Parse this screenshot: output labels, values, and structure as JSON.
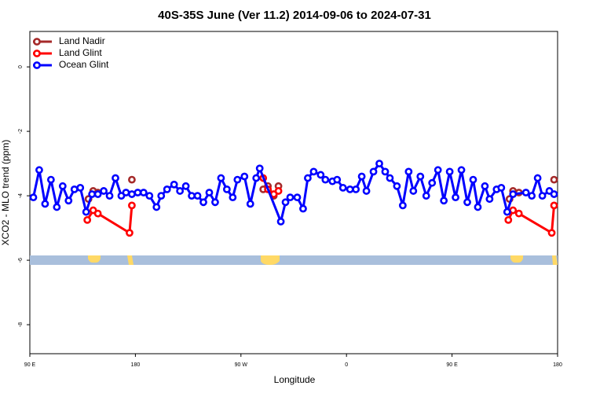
{
  "chart_data": {
    "type": "line",
    "title": "40S-35S June (Ver 11.2)   2014-09-06 to 2024-07-31",
    "x_label": "Longitude",
    "y_label": "XCO2 - MLO trend (ppm)",
    "xlim": [
      90,
      540
    ],
    "xticks": [
      {
        "value": 90,
        "label": "90 E"
      },
      {
        "value": 180,
        "label": "180"
      },
      {
        "value": 270,
        "label": "90 W"
      },
      {
        "value": 360,
        "label": "0"
      },
      {
        "value": 450,
        "label": "90 E"
      },
      {
        "value": 540,
        "label": "180"
      }
    ],
    "ylim": [
      -8.9,
      1.1
    ],
    "yticks": [
      0,
      -2,
      -4,
      -6,
      -8
    ],
    "legend": "upper left",
    "series": [
      {
        "name": "Land Nadir",
        "color": "#a52a2a",
        "x": [
          140,
          144,
          148,
          null,
          177,
          null,
          289,
          293,
          298,
          302,
          null,
          499,
          502,
          507,
          null,
          537
        ],
        "values": [
          -4.1,
          -3.85,
          -3.9,
          null,
          -3.5,
          null,
          -3.8,
          -3.7,
          -4.0,
          -3.7,
          null,
          -4.1,
          -3.85,
          -3.9,
          null,
          -3.5
        ]
      },
      {
        "name": "Land Glint",
        "color": "#ff0000",
        "x": [
          139,
          144,
          148,
          175,
          177,
          null,
          289,
          293,
          298,
          302,
          null,
          498,
          502,
          507,
          535,
          537
        ],
        "values": [
          -4.75,
          -4.45,
          -4.55,
          -5.15,
          -4.3,
          null,
          -3.45,
          -3.8,
          -3.95,
          -3.85,
          null,
          -4.75,
          -4.45,
          -4.55,
          -5.15,
          -4.3
        ]
      },
      {
        "name": "Ocean Glint",
        "color": "#0000ff",
        "x": [
          93,
          98,
          103,
          108,
          113,
          118,
          123,
          128,
          133,
          138,
          143,
          148,
          153,
          158,
          163,
          168,
          172,
          177,
          182,
          187,
          192,
          198,
          202,
          207,
          213,
          218,
          223,
          228,
          233,
          238,
          243,
          248,
          253,
          258,
          263,
          267,
          273,
          278,
          283,
          286,
          304,
          308,
          312,
          318,
          323,
          327,
          332,
          338,
          342,
          348,
          352,
          357,
          363,
          368,
          373,
          377,
          383,
          388,
          393,
          397,
          403,
          408,
          413,
          417,
          423,
          428,
          433,
          438,
          443,
          448,
          453,
          458,
          463,
          468,
          472,
          478,
          482,
          488,
          492,
          497,
          502,
          513,
          518,
          523,
          527,
          533,
          537
        ],
        "values": [
          -4.05,
          -3.2,
          -4.25,
          -3.5,
          -4.35,
          -3.7,
          -4.15,
          -3.8,
          -3.75,
          -4.5,
          -3.95,
          -3.95,
          -3.85,
          -4.0,
          -3.45,
          -4.0,
          -3.9,
          -3.95,
          -3.9,
          -3.9,
          -4.0,
          -4.35,
          -4.0,
          -3.8,
          -3.65,
          -3.85,
          -3.7,
          -4.0,
          -4.0,
          -4.2,
          -3.9,
          -4.2,
          -3.45,
          -3.8,
          -4.05,
          -3.5,
          -3.4,
          -4.25,
          -3.45,
          -3.15,
          -4.8,
          -4.2,
          -4.05,
          -4.05,
          -4.4,
          -3.45,
          -3.25,
          -3.35,
          -3.5,
          -3.55,
          -3.5,
          -3.75,
          -3.8,
          -3.8,
          -3.4,
          -3.85,
          -3.25,
          -3.0,
          -3.25,
          -3.45,
          -3.7,
          -4.3,
          -3.25,
          -3.85,
          -3.4,
          -4.0,
          -3.6,
          -3.2,
          -4.15,
          -3.25,
          -4.05,
          -3.2,
          -4.2,
          -3.5,
          -4.35,
          -3.7,
          -4.1,
          -3.8,
          -3.75,
          -4.5,
          -3.95,
          -3.9,
          -4.0,
          -3.45,
          -4.0,
          -3.85,
          -3.95
        ]
      }
    ]
  }
}
